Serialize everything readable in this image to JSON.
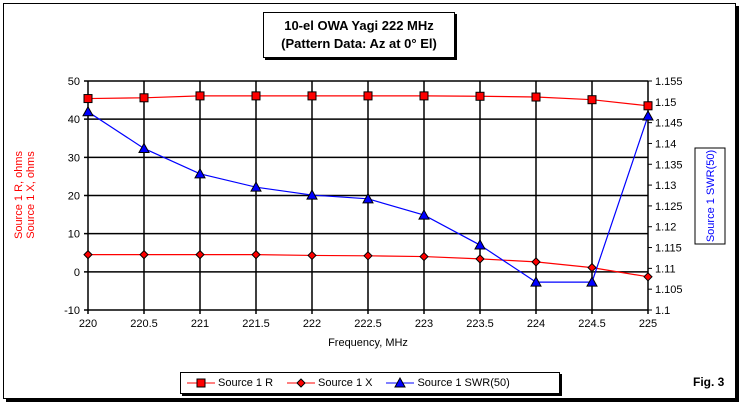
{
  "chart_data": {
    "type": "line",
    "title": [
      "10-el OWA Yagi 222 MHz",
      "(Pattern Data: Az at 0° El)"
    ],
    "xlabel": "Frequency, MHz",
    "ylabel_left": [
      "Source 1 R, ohms",
      "Source 1 X, ohms"
    ],
    "ylabel_right": "Source 1 SWR(50)",
    "x": [
      220,
      220.5,
      221,
      221.5,
      222,
      222.5,
      223,
      223.5,
      224,
      224.5,
      225
    ],
    "xticks": [
      "220",
      "220.5",
      "221",
      "221.5",
      "222",
      "222.5",
      "223",
      "223.5",
      "224",
      "224.5",
      "225"
    ],
    "ylim_left": [
      -10,
      50
    ],
    "yticks_left": [
      "50",
      "40",
      "30",
      "20",
      "10",
      "0",
      "-10"
    ],
    "ylim_right": [
      1.1,
      1.155
    ],
    "yticks_right": [
      "1.155",
      "1.15",
      "1.145",
      "1.14",
      "1.135",
      "1.13",
      "1.125",
      "1.12",
      "1.115",
      "1.11",
      "1.105",
      "1.1"
    ],
    "grid": true,
    "legend_position": "bottom",
    "series": [
      {
        "name": "Source 1 R",
        "axis": "left",
        "color": "#ff0000",
        "marker": "square",
        "values": [
          45.4,
          45.6,
          46.1,
          46.1,
          46.1,
          46.1,
          46.1,
          46.0,
          45.8,
          45.1,
          43.5
        ]
      },
      {
        "name": "Source 1 X",
        "axis": "left",
        "color": "#ff0000",
        "marker": "diamond",
        "values": [
          4.5,
          4.5,
          4.5,
          4.5,
          4.3,
          4.2,
          4.0,
          3.4,
          2.6,
          1.1,
          -1.3
        ]
      },
      {
        "name": "Source 1 SWR(50)",
        "axis": "right",
        "color": "#0000ff",
        "marker": "triangle",
        "values": [
          1.1476,
          1.1388,
          1.1327,
          1.1295,
          1.1276,
          1.1267,
          1.1228,
          1.1156,
          1.1067,
          1.1067,
          1.1466
        ]
      }
    ]
  },
  "figure_label": "Fig. 3"
}
